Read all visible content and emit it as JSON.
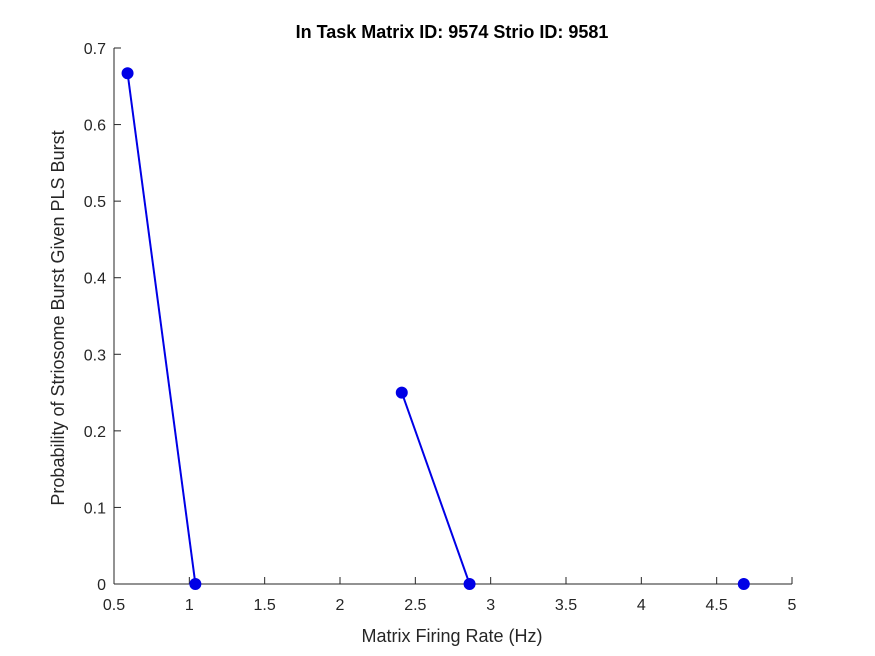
{
  "chart_data": {
    "type": "line",
    "title": "In Task Matrix ID: 9574 Strio ID: 9581",
    "xlabel": "Matrix Firing Rate (Hz)",
    "ylabel": "Probability of Striosome Burst Given PLS Burst",
    "xlim": [
      0.5,
      5
    ],
    "ylim": [
      0,
      0.7
    ],
    "xticks": [
      "0.5",
      "1",
      "1.5",
      "2",
      "2.5",
      "3",
      "3.5",
      "4",
      "4.5",
      "5"
    ],
    "yticks": [
      "0",
      "0.1",
      "0.2",
      "0.3",
      "0.4",
      "0.5",
      "0.6",
      "0.7"
    ],
    "grid": false,
    "series_color": "#0000e6",
    "segments": [
      [
        {
          "x": 0.59,
          "y": 0.667
        },
        {
          "x": 1.04,
          "y": 0
        }
      ],
      [
        {
          "x": 2.41,
          "y": 0.25
        },
        {
          "x": 2.86,
          "y": 0
        }
      ],
      [
        {
          "x": 4.68,
          "y": 0
        }
      ]
    ]
  }
}
